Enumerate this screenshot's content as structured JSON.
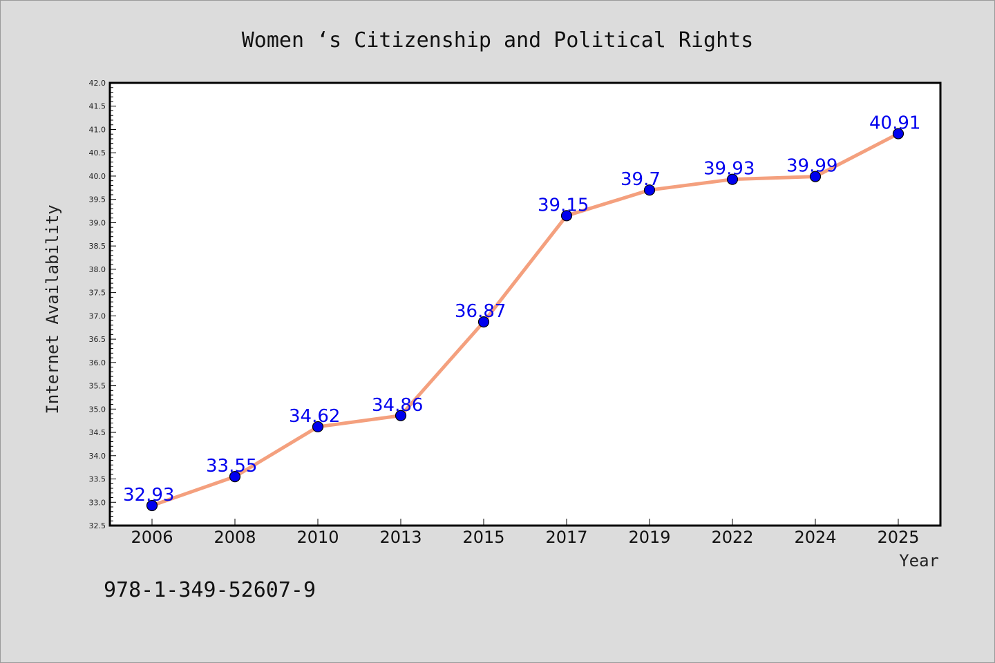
{
  "chart_data": {
    "type": "line",
    "title": "Women ‘s Citizenship and Political Rights",
    "xlabel": "Year",
    "ylabel": "Internet Availability",
    "categories": [
      "2006",
      "2008",
      "2010",
      "2013",
      "2015",
      "2017",
      "2019",
      "2022",
      "2024",
      "2025"
    ],
    "series": [
      {
        "values": [
          32.93,
          33.55,
          34.62,
          34.86,
          36.87,
          39.15,
          39.7,
          39.93,
          39.99,
          40.91
        ],
        "labels": [
          "32.93",
          "33.55",
          "34.62",
          "34.86",
          "36.87",
          "39.15",
          "39.7",
          "39.93",
          "39.99",
          "40.91"
        ],
        "line_color": "#f4a07e",
        "marker_color": "#0000ee"
      }
    ],
    "ylim": [
      32.5,
      42.0
    ],
    "yticks": [
      "32.5",
      "33.0",
      "33.5",
      "34.0",
      "34.5",
      "35.0",
      "35.5",
      "36.0",
      "36.5",
      "37.0",
      "37.5",
      "38.0",
      "38.5",
      "39.0",
      "39.5",
      "40.0",
      "40.5",
      "41.0",
      "41.5",
      "42.0"
    ],
    "grid": false,
    "legend": "none"
  },
  "footer": {
    "isbn": "978-1-349-52607-9"
  },
  "colors": {
    "background": "#dcdcdc",
    "plot_background": "#ffffff",
    "label_color": "#0000ee",
    "line_color": "#f4a07e"
  }
}
